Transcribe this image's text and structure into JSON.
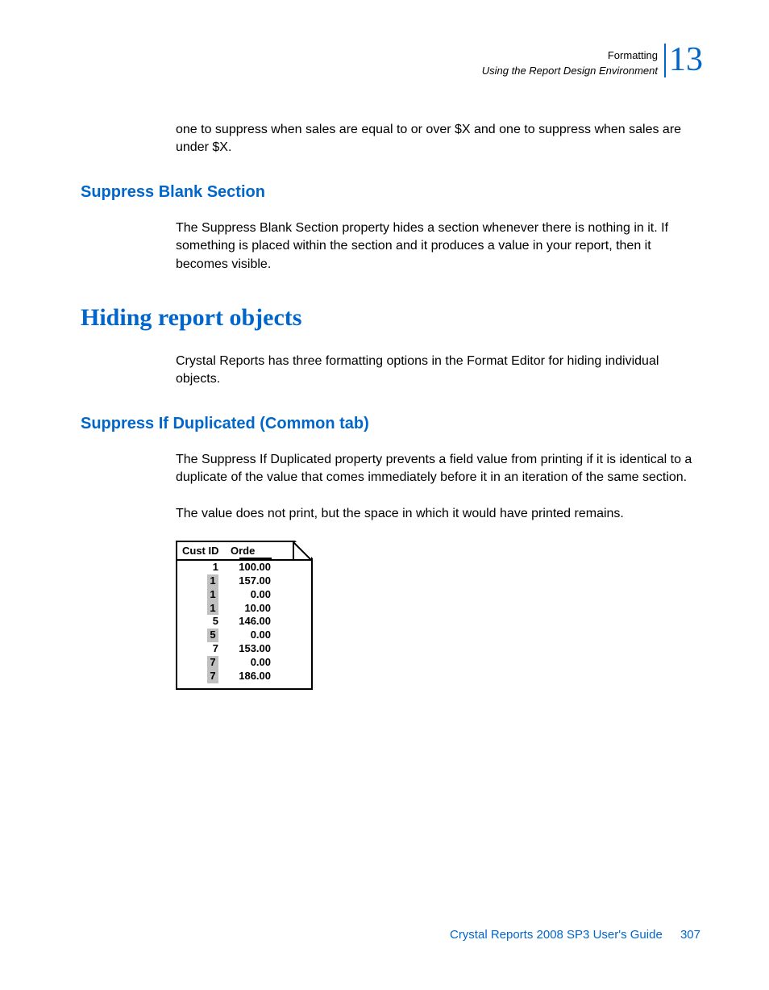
{
  "header": {
    "chapter_label": "Formatting",
    "chapter_subtitle": "Using the Report Design Environment",
    "chapter_number": "13"
  },
  "intro_continuation": "one to suppress when sales are equal to or over $X and one to suppress when sales are under $X.",
  "section1": {
    "title": "Suppress Blank Section",
    "body": "The Suppress Blank Section property hides a section whenever there is nothing in it. If something is placed within the section and it produces a value in your report, then it becomes visible."
  },
  "section2": {
    "title": "Hiding report objects",
    "body": "Crystal Reports has three formatting options in the Format Editor for hiding individual objects."
  },
  "section3": {
    "title": "Suppress If Duplicated (Common tab)",
    "body1": "The Suppress If Duplicated property prevents a field value from printing if it is identical to a duplicate of the value that comes immediately before it in an iteration of the same section.",
    "body2": "The value does not print, but the space in which it would have printed remains."
  },
  "table": {
    "columns": [
      "Cust ID",
      "Orde"
    ],
    "rows": [
      {
        "id": "1",
        "order": "100.00",
        "highlight": false
      },
      {
        "id": "1",
        "order": "157.00",
        "highlight": true
      },
      {
        "id": "1",
        "order": "0.00",
        "highlight": true
      },
      {
        "id": "1",
        "order": "10.00",
        "highlight": true
      },
      {
        "id": "5",
        "order": "146.00",
        "highlight": false
      },
      {
        "id": "5",
        "order": "0.00",
        "highlight": true
      },
      {
        "id": "7",
        "order": "153.00",
        "highlight": false
      },
      {
        "id": "7",
        "order": "0.00",
        "highlight": true
      },
      {
        "id": "7",
        "order": "186.00",
        "highlight": true
      }
    ],
    "border_color": "#000000",
    "highlight_color": "#c0c0c0"
  },
  "footer": {
    "text": "Crystal Reports 2008 SP3 User's Guide",
    "page": "307"
  },
  "colors": {
    "heading_blue": "#0066cc",
    "text_black": "#000000",
    "background": "#ffffff"
  }
}
